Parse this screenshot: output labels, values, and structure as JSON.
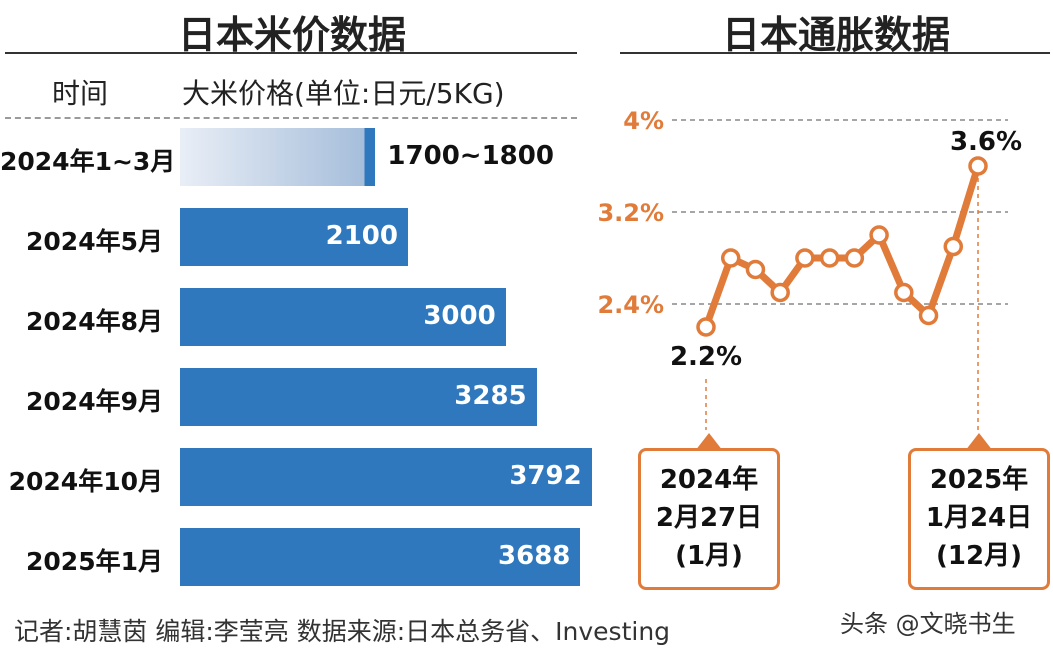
{
  "left": {
    "title": "日本米价数据",
    "col_time": "时间",
    "col_price": "大米价格(单位:日元/5KG)"
  },
  "right": {
    "title": "日本通胀数据",
    "start_callout": [
      "2024年",
      "2月27日",
      "(1月)"
    ],
    "end_callout": [
      "2025年",
      "1月24日",
      "(12月)"
    ]
  },
  "footer": {
    "credits": "记者:胡慧茵   编辑:李莹亮   数据来源:日本总务省、Investing"
  },
  "watermark": "头条 @文晓书生",
  "colors": {
    "bar": "#2f78bd",
    "line": "#e07b3a",
    "axis_label": "#e07b3a"
  },
  "chart_data": [
    {
      "type": "bar",
      "orientation": "horizontal",
      "title": "日本米价数据",
      "xlabel": "大米价格(单位:日元/5KG)",
      "ylabel": "时间",
      "categories": [
        "2024年1~3月",
        "2024年5月",
        "2024年8月",
        "2024年9月",
        "2024年10月",
        "2025年1月"
      ],
      "values": [
        1750,
        2100,
        3000,
        3285,
        3792,
        3688
      ],
      "value_labels": [
        "1700~1800",
        "2100",
        "3000",
        "3285",
        "3792",
        "3688"
      ],
      "range_first": [
        1700,
        1800
      ],
      "xlim": [
        0,
        3850
      ]
    },
    {
      "type": "line",
      "title": "日本通胀数据",
      "y_ticks": [
        "4%",
        "3.2%",
        "2.4%"
      ],
      "y_tick_values": [
        4.0,
        3.2,
        2.4
      ],
      "ylim": [
        2.0,
        4.0
      ],
      "grid": "dashed horizontal",
      "x": [
        "2024-01",
        "2024-02",
        "2024-03",
        "2024-04",
        "2024-05",
        "2024-06",
        "2024-07",
        "2024-08",
        "2024-09",
        "2024-10",
        "2024-11",
        "2024-12"
      ],
      "values": [
        2.2,
        2.8,
        2.7,
        2.5,
        2.8,
        2.8,
        2.8,
        3.0,
        2.5,
        2.3,
        2.9,
        3.6
      ],
      "annotations": [
        {
          "label": "2.2%",
          "at": "2024-01"
        },
        {
          "label": "3.6%",
          "at": "2024-12"
        }
      ]
    }
  ]
}
